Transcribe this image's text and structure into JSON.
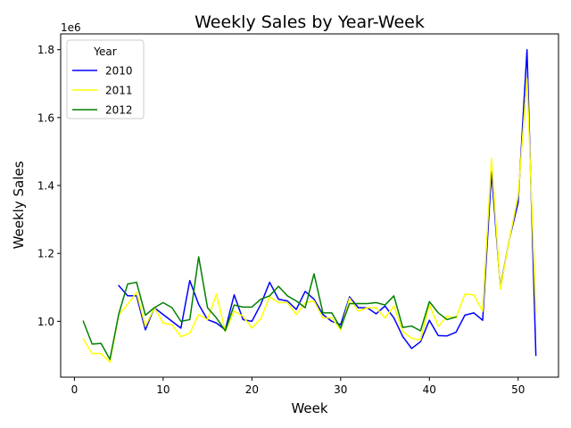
{
  "chart_data": {
    "type": "line",
    "title": "Weekly Sales by Year-Week",
    "xlabel": "Week",
    "ylabel": "Weekly Sales",
    "y_offset_label": "1e6",
    "xlim": [
      -1.55,
      54.55
    ],
    "ylim": [
      0.8355,
      1.8465
    ],
    "xticks": [
      0,
      10,
      20,
      30,
      40,
      50
    ],
    "yticks": [
      1.0,
      1.2,
      1.4,
      1.6,
      1.8
    ],
    "ytick_labels": [
      "1.0",
      "1.2",
      "1.4",
      "1.6",
      "1.8"
    ],
    "grid": false,
    "legend": {
      "title": "Year",
      "placement": "upper-left"
    },
    "series": [
      {
        "name": "2010",
        "color": "#0000ff",
        "x": [
          5,
          6,
          7,
          8,
          9,
          10,
          11,
          12,
          13,
          14,
          15,
          16,
          17,
          18,
          19,
          20,
          21,
          22,
          23,
          24,
          25,
          26,
          27,
          28,
          29,
          30,
          31,
          32,
          33,
          34,
          35,
          36,
          37,
          38,
          39,
          40,
          41,
          42,
          43,
          44,
          45,
          46,
          47,
          48,
          49,
          50,
          51,
          52
        ],
        "values": [
          1.105,
          1.075,
          1.075,
          0.975,
          1.04,
          1.02,
          1.0,
          0.98,
          1.12,
          1.05,
          1.005,
          0.995,
          0.975,
          1.078,
          1.005,
          1.0,
          1.05,
          1.115,
          1.065,
          1.06,
          1.035,
          1.088,
          1.065,
          1.02,
          1.0,
          0.99,
          1.072,
          1.04,
          1.04,
          1.022,
          1.045,
          1.01,
          0.955,
          0.92,
          0.94,
          1.003,
          0.958,
          0.957,
          0.968,
          1.018,
          1.025,
          1.003,
          1.44,
          1.1,
          1.24,
          1.35,
          1.8,
          0.9
        ]
      },
      {
        "name": "2011",
        "color": "#ffff00",
        "x": [
          1,
          2,
          3,
          4,
          5,
          6,
          7,
          8,
          9,
          10,
          11,
          12,
          13,
          14,
          15,
          16,
          17,
          18,
          19,
          20,
          21,
          22,
          23,
          24,
          25,
          26,
          27,
          28,
          29,
          30,
          31,
          32,
          33,
          34,
          35,
          36,
          37,
          38,
          39,
          40,
          41,
          42,
          43,
          44,
          45,
          46,
          47,
          48,
          49,
          50,
          51,
          52
        ],
        "values": [
          0.948,
          0.905,
          0.905,
          0.88,
          1.02,
          1.05,
          1.085,
          0.985,
          1.04,
          0.995,
          0.99,
          0.955,
          0.965,
          1.02,
          1.005,
          1.08,
          0.97,
          1.03,
          1.015,
          0.98,
          1.008,
          1.072,
          1.055,
          1.055,
          1.02,
          1.055,
          1.06,
          1.01,
          1.01,
          0.975,
          1.068,
          1.03,
          1.04,
          1.04,
          1.01,
          1.045,
          0.97,
          0.95,
          0.945,
          1.05,
          0.985,
          1.015,
          1.01,
          1.08,
          1.078,
          1.03,
          1.48,
          1.095,
          1.24,
          1.37,
          1.715,
          1.025
        ]
      },
      {
        "name": "2012",
        "color": "#008000",
        "x": [
          1,
          2,
          3,
          4,
          5,
          6,
          7,
          8,
          9,
          10,
          11,
          12,
          13,
          14,
          15,
          16,
          17,
          18,
          19,
          20,
          21,
          22,
          23,
          24,
          25,
          26,
          27,
          28,
          29,
          30,
          31,
          32,
          33,
          34,
          35,
          36,
          37,
          38,
          39,
          40,
          41,
          42,
          43
        ],
        "values": [
          1.0,
          0.933,
          0.935,
          0.888,
          1.022,
          1.11,
          1.115,
          1.018,
          1.04,
          1.055,
          1.04,
          1.0,
          1.005,
          1.19,
          1.04,
          1.01,
          0.972,
          1.048,
          1.042,
          1.042,
          1.065,
          1.075,
          1.103,
          1.075,
          1.06,
          1.04,
          1.14,
          1.025,
          1.025,
          0.98,
          1.052,
          1.052,
          1.052,
          1.055,
          1.048,
          1.075,
          0.982,
          0.986,
          0.972,
          1.058,
          1.025,
          1.005,
          1.013
        ]
      }
    ]
  }
}
